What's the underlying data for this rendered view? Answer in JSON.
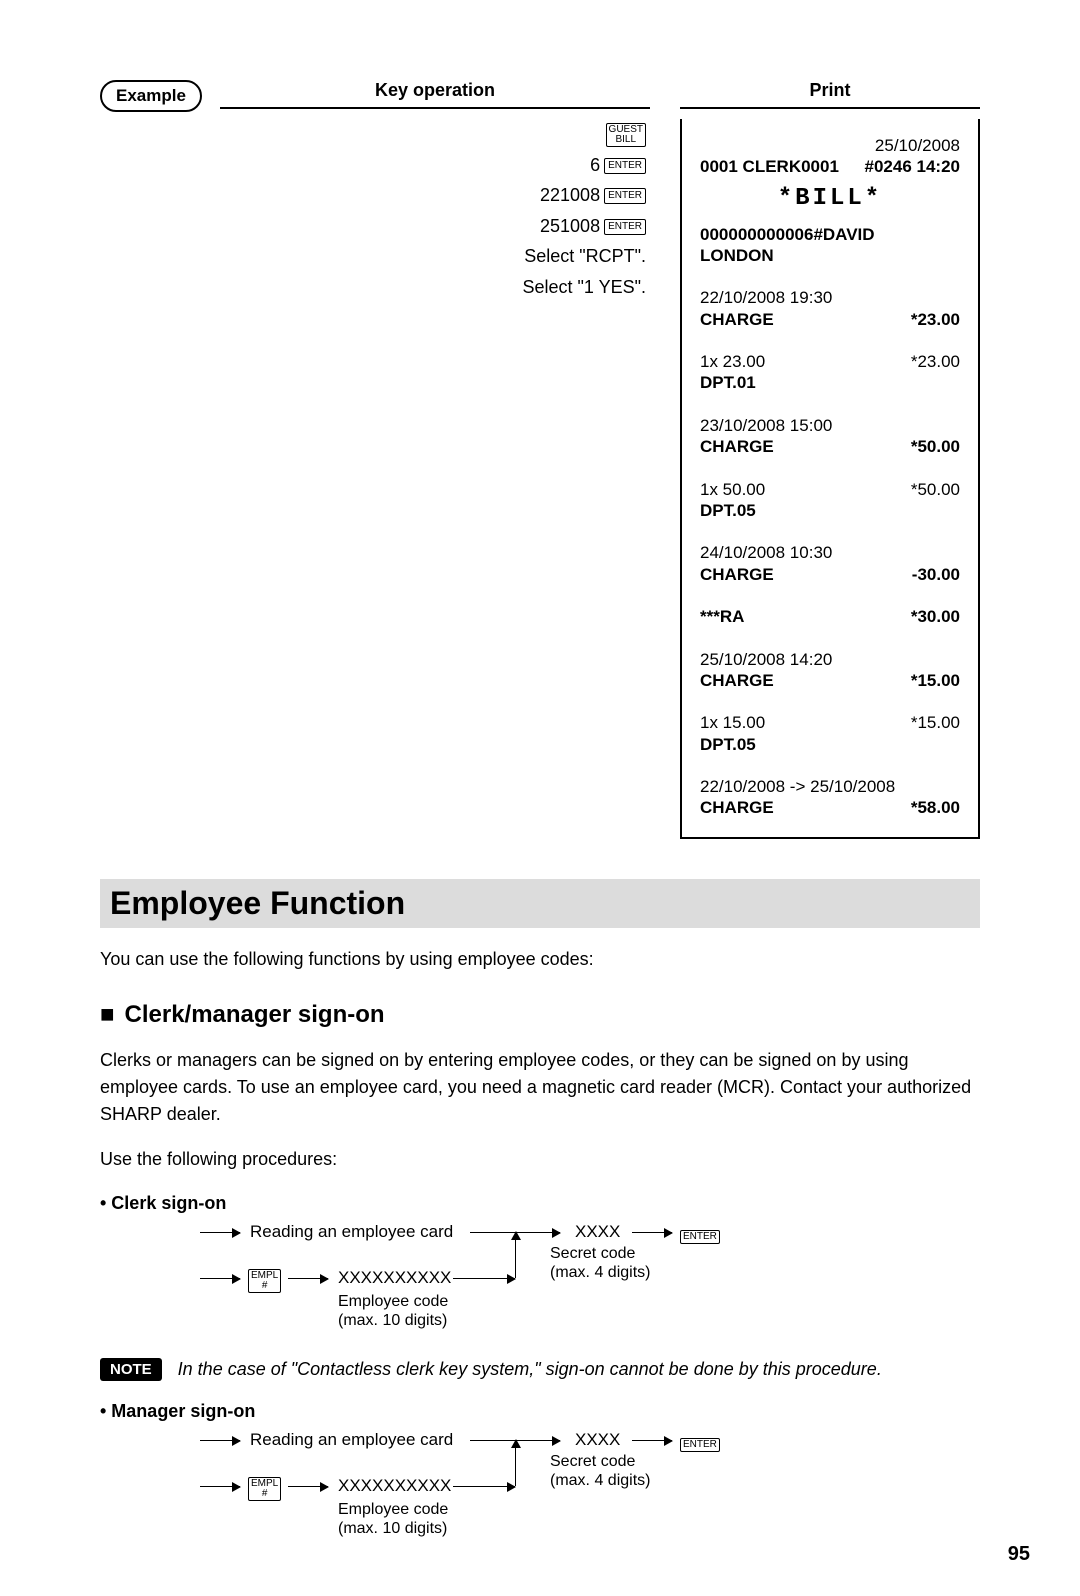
{
  "example_label": "Example",
  "key_op_header": "Key operation",
  "print_header": "Print",
  "key_ops": {
    "row1_key": "GUEST\nBILL",
    "row2_text": "6",
    "enter_key": "ENTER",
    "row3_text": "221008",
    "row4_text": "251008",
    "row5_text": "Select \"RCPT\".",
    "row6_text": "Select \"1 YES\"."
  },
  "receipt": {
    "date_top": "25/10/2008",
    "clerk_left": "0001 CLERK0001",
    "clerk_right": "#0246 14:20",
    "title": "*BILL*",
    "acct": "000000000006#DAVID",
    "city": "LONDON",
    "lines": [
      {
        "l": "22/10/2008 19:30",
        "r": ""
      },
      {
        "l": "CHARGE",
        "r": "*23.00",
        "bold": true
      },
      {
        "l": "",
        "r": ""
      },
      {
        "l": "1x 23.00",
        "r": "*23.00"
      },
      {
        "l": "DPT.01",
        "r": "",
        "bold": true
      },
      {
        "l": "",
        "r": ""
      },
      {
        "l": "23/10/2008 15:00",
        "r": ""
      },
      {
        "l": "CHARGE",
        "r": "*50.00",
        "bold": true
      },
      {
        "l": "",
        "r": ""
      },
      {
        "l": "1x 50.00",
        "r": "*50.00"
      },
      {
        "l": "DPT.05",
        "r": "",
        "bold": true
      },
      {
        "l": "",
        "r": ""
      },
      {
        "l": "24/10/2008 10:30",
        "r": ""
      },
      {
        "l": "CHARGE",
        "r": "-30.00",
        "bold": true
      },
      {
        "l": "",
        "r": ""
      },
      {
        "l": "***RA",
        "r": "*30.00",
        "bold": true
      },
      {
        "l": "",
        "r": ""
      },
      {
        "l": "25/10/2008 14:20",
        "r": ""
      },
      {
        "l": "CHARGE",
        "r": "*15.00",
        "bold": true
      },
      {
        "l": "",
        "r": ""
      },
      {
        "l": "1x 15.00",
        "r": "*15.00"
      },
      {
        "l": "DPT.05",
        "r": "",
        "bold": true
      },
      {
        "l": "",
        "r": ""
      },
      {
        "l": "22/10/2008 -> 25/10/2008",
        "r": ""
      },
      {
        "l": "CHARGE",
        "r": "*58.00",
        "bold": true
      }
    ]
  },
  "section_title": "Employee Function",
  "intro_text": "You can use the following functions by using employee codes:",
  "subhead1": "Clerk/manager sign-on",
  "para1": "Clerks or managers can be signed on by entering employee codes, or they can be signed on by using employee cards. To use an employee card, you need a magnetic card reader (MCR). Contact your authorized SHARP dealer.",
  "para2": "Use the following procedures:",
  "bullet1": "• Clerk sign-on",
  "bullet2": "• Manager sign-on",
  "flow": {
    "reading": "Reading an employee card",
    "empl_key": "EMPL\n#",
    "empcode": "XXXXXXXXXX",
    "empcode_sub": "Employee code\n(max. 10 digits)",
    "secret": "XXXX",
    "secret_sub": "Secret code\n(max. 4 digits)",
    "enter_key": "ENTER"
  },
  "note_label": "NOTE",
  "note_text": "In the case of \"Contactless clerk key system,\" sign-on cannot be done by this procedure.",
  "page_number": "95"
}
